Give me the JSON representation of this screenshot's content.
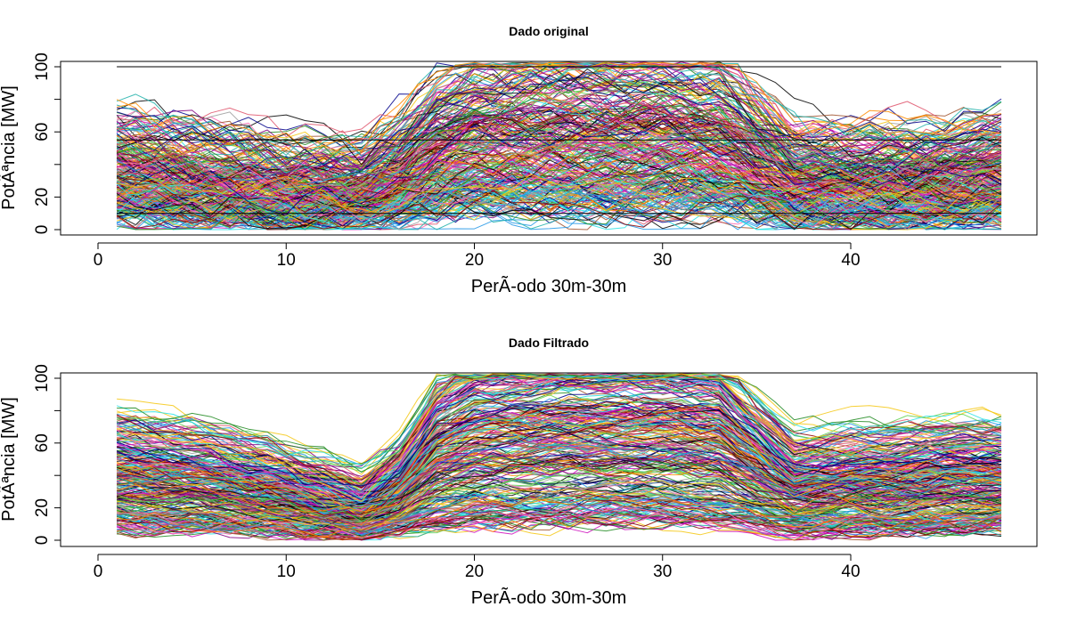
{
  "chart_data": [
    {
      "type": "line",
      "title": "Dado original",
      "xlabel": "PerÃ-odo 30m-30m",
      "ylabel": "PotÃªncia [MW]",
      "xlim": [
        0,
        50
      ],
      "ylim": [
        0,
        100
      ],
      "x_ticks": [
        0,
        10,
        20,
        30,
        40
      ],
      "y_ticks": [
        0,
        20,
        60,
        100
      ],
      "grid": false,
      "legend": "none",
      "x_range": [
        1,
        48
      ],
      "n_series_shown": 300,
      "profile": {
        "description": "many daily load curves; most low-to-mid in periods 1-15, many rise to ~90-100 MW between periods 16 and 35, then drop",
        "mean_x": [
          1,
          5,
          10,
          14,
          16,
          18,
          20,
          25,
          30,
          33,
          35,
          37,
          40,
          45,
          48
        ],
        "mean_y": [
          32,
          28,
          22,
          22,
          30,
          42,
          48,
          50,
          50,
          48,
          38,
          28,
          26,
          28,
          30
        ],
        "noise": 9
      },
      "highlighted_lines": [
        {
          "color": "#000000",
          "x": [
            1,
            14,
            48
          ],
          "y": [
            100,
            100,
            100
          ]
        },
        {
          "color": "#000000",
          "x": [
            1,
            14,
            15,
            48
          ],
          "y": [
            55,
            55,
            55,
            55
          ]
        },
        {
          "color": "#000000",
          "x": [
            1,
            48
          ],
          "y": [
            10,
            10
          ]
        }
      ],
      "palette": [
        "#000000",
        "#df536b",
        "#61d04f",
        "#2297e6",
        "#28e2e5",
        "#cd0bbc",
        "#f5c710",
        "#9e9e9e",
        "#8b0000",
        "#00008b",
        "#228b22",
        "#ff8c00",
        "#800080",
        "#a0522d",
        "#ff69b4",
        "#20b2aa"
      ]
    },
    {
      "type": "line",
      "title": "Dado Filtrado",
      "xlabel": "PerÃ-odo 30m-30m",
      "ylabel": "PotÃªncia [MW]",
      "xlim": [
        0,
        50
      ],
      "ylim": [
        0,
        100
      ],
      "x_ticks": [
        0,
        10,
        20,
        30,
        40
      ],
      "y_ticks": [
        0,
        20,
        60,
        100
      ],
      "grid": false,
      "legend": "none",
      "x_range": [
        1,
        48
      ],
      "n_series_shown": 300,
      "profile": {
        "description": "filtered load curves; smoother, low between periods 10-15, peak ~90-100 MW between periods 18 and 34, then drop",
        "mean_x": [
          1,
          5,
          10,
          14,
          16,
          18,
          20,
          25,
          30,
          33,
          35,
          37,
          40,
          45,
          48
        ],
        "mean_y": [
          35,
          32,
          24,
          16,
          26,
          45,
          52,
          55,
          55,
          52,
          40,
          28,
          30,
          32,
          32
        ],
        "noise": 5
      },
      "highlighted_lines": [],
      "palette": [
        "#000000",
        "#df536b",
        "#61d04f",
        "#2297e6",
        "#28e2e5",
        "#cd0bbc",
        "#f5c710",
        "#9e9e9e",
        "#8b0000",
        "#00008b",
        "#228b22",
        "#ff8c00",
        "#800080",
        "#a0522d",
        "#ff69b4",
        "#20b2aa"
      ]
    }
  ]
}
